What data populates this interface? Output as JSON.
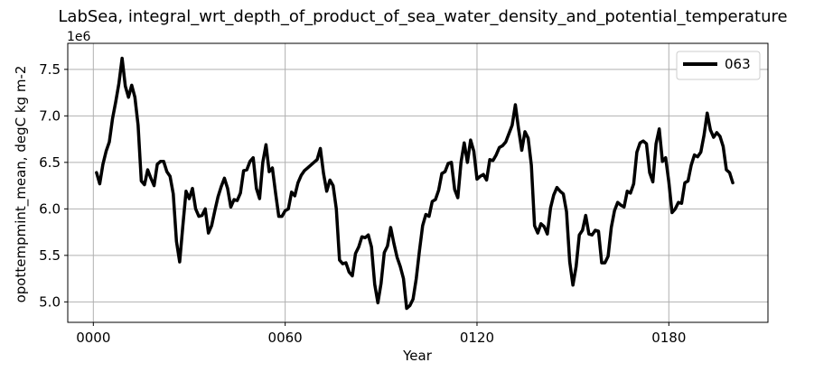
{
  "chart_data": {
    "type": "line",
    "title": "LabSea, integral_wrt_depth_of_product_of_sea_water_density_and_potential_temperature",
    "xlabel": "Year",
    "ylabel": "opottempmint_mean, degC kg m-2",
    "y_offset_label": "1e6",
    "xlim": [
      -8,
      211
    ],
    "ylim": [
      4.78,
      7.78
    ],
    "x_ticks": [
      0,
      60,
      120,
      180
    ],
    "x_tick_labels": [
      "0000",
      "0060",
      "0120",
      "0180"
    ],
    "y_ticks": [
      5.0,
      5.5,
      6.0,
      6.5,
      7.0,
      7.5
    ],
    "y_tick_labels": [
      "5.0",
      "5.5",
      "6.0",
      "6.5",
      "7.0",
      "7.5"
    ],
    "grid": true,
    "legend_position": "top-right",
    "series": [
      {
        "name": "063",
        "color": "#000000",
        "x": [
          1,
          2,
          3,
          4,
          5,
          6,
          7,
          8,
          9,
          10,
          11,
          12,
          13,
          14,
          15,
          16,
          17,
          18,
          19,
          20,
          21,
          22,
          23,
          24,
          25,
          26,
          27,
          28,
          29,
          30,
          31,
          32,
          33,
          34,
          35,
          36,
          37,
          38,
          39,
          40,
          41,
          42,
          43,
          44,
          45,
          46,
          47,
          48,
          49,
          50,
          51,
          52,
          53,
          54,
          55,
          56,
          57,
          58,
          59,
          60,
          61,
          62,
          63,
          64,
          65,
          66,
          67,
          68,
          69,
          70,
          71,
          72,
          73,
          74,
          75,
          76,
          77,
          78,
          79,
          80,
          81,
          82,
          83,
          84,
          85,
          86,
          87,
          88,
          89,
          90,
          91,
          92,
          93,
          94,
          95,
          96,
          97,
          98,
          99,
          100,
          101,
          102,
          103,
          104,
          105,
          106,
          107,
          108,
          109,
          110,
          111,
          112,
          113,
          114,
          115,
          116,
          117,
          118,
          119,
          120,
          121,
          122,
          123,
          124,
          125,
          126,
          127,
          128,
          129,
          130,
          131,
          132,
          133,
          134,
          135,
          136,
          137,
          138,
          139,
          140,
          141,
          142,
          143,
          144,
          145,
          146,
          147,
          148,
          149,
          150,
          151,
          152,
          153,
          154,
          155,
          156,
          157,
          158,
          159,
          160,
          161,
          162,
          163,
          164,
          165,
          166,
          167,
          168,
          169,
          170,
          171,
          172,
          173,
          174,
          175,
          176,
          177,
          178,
          179,
          180,
          181,
          182,
          183,
          184,
          185,
          186,
          187,
          188,
          189,
          190,
          191,
          192,
          193,
          194,
          195,
          196,
          197,
          198,
          199,
          200
        ],
        "values": [
          6.39,
          6.27,
          6.48,
          6.62,
          6.72,
          6.97,
          7.15,
          7.35,
          7.62,
          7.32,
          7.2,
          7.33,
          7.2,
          6.9,
          6.3,
          6.26,
          6.42,
          6.33,
          6.25,
          6.48,
          6.51,
          6.51,
          6.4,
          6.35,
          6.16,
          5.65,
          5.43,
          5.82,
          6.19,
          6.11,
          6.22,
          6.0,
          5.92,
          5.93,
          6.0,
          5.74,
          5.82,
          5.98,
          6.13,
          6.24,
          6.33,
          6.22,
          6.02,
          6.1,
          6.09,
          6.17,
          6.41,
          6.42,
          6.51,
          6.55,
          6.22,
          6.11,
          6.5,
          6.69,
          6.4,
          6.44,
          6.17,
          5.92,
          5.92,
          5.98,
          6.0,
          6.18,
          6.14,
          6.28,
          6.36,
          6.41,
          6.44,
          6.47,
          6.5,
          6.53,
          6.65,
          6.38,
          6.19,
          6.31,
          6.25,
          6.0,
          5.45,
          5.41,
          5.42,
          5.32,
          5.28,
          5.52,
          5.59,
          5.7,
          5.69,
          5.72,
          5.59,
          5.19,
          4.99,
          5.2,
          5.53,
          5.6,
          5.8,
          5.63,
          5.48,
          5.38,
          5.25,
          4.93,
          4.96,
          5.03,
          5.25,
          5.55,
          5.82,
          5.94,
          5.92,
          6.08,
          6.1,
          6.2,
          6.38,
          6.4,
          6.49,
          6.5,
          6.21,
          6.12,
          6.5,
          6.71,
          6.5,
          6.74,
          6.62,
          6.32,
          6.35,
          6.37,
          6.31,
          6.53,
          6.52,
          6.58,
          6.66,
          6.68,
          6.72,
          6.81,
          6.9,
          7.12,
          6.86,
          6.63,
          6.83,
          6.76,
          6.47,
          5.82,
          5.74,
          5.84,
          5.81,
          5.73,
          6.01,
          6.15,
          6.23,
          6.19,
          6.16,
          5.97,
          5.43,
          5.18,
          5.38,
          5.72,
          5.77,
          5.93,
          5.73,
          5.72,
          5.77,
          5.76,
          5.42,
          5.42,
          5.49,
          5.8,
          5.98,
          6.07,
          6.04,
          6.02,
          6.19,
          6.17,
          6.27,
          6.61,
          6.71,
          6.73,
          6.7,
          6.39,
          6.29,
          6.7,
          6.86,
          6.51,
          6.55,
          6.29,
          5.96,
          6.0,
          6.07,
          6.06,
          6.28,
          6.3,
          6.47,
          6.58,
          6.56,
          6.61,
          6.79,
          7.03,
          6.85,
          6.77,
          6.82,
          6.78,
          6.67,
          6.42,
          6.39,
          6.28
        ]
      }
    ]
  }
}
